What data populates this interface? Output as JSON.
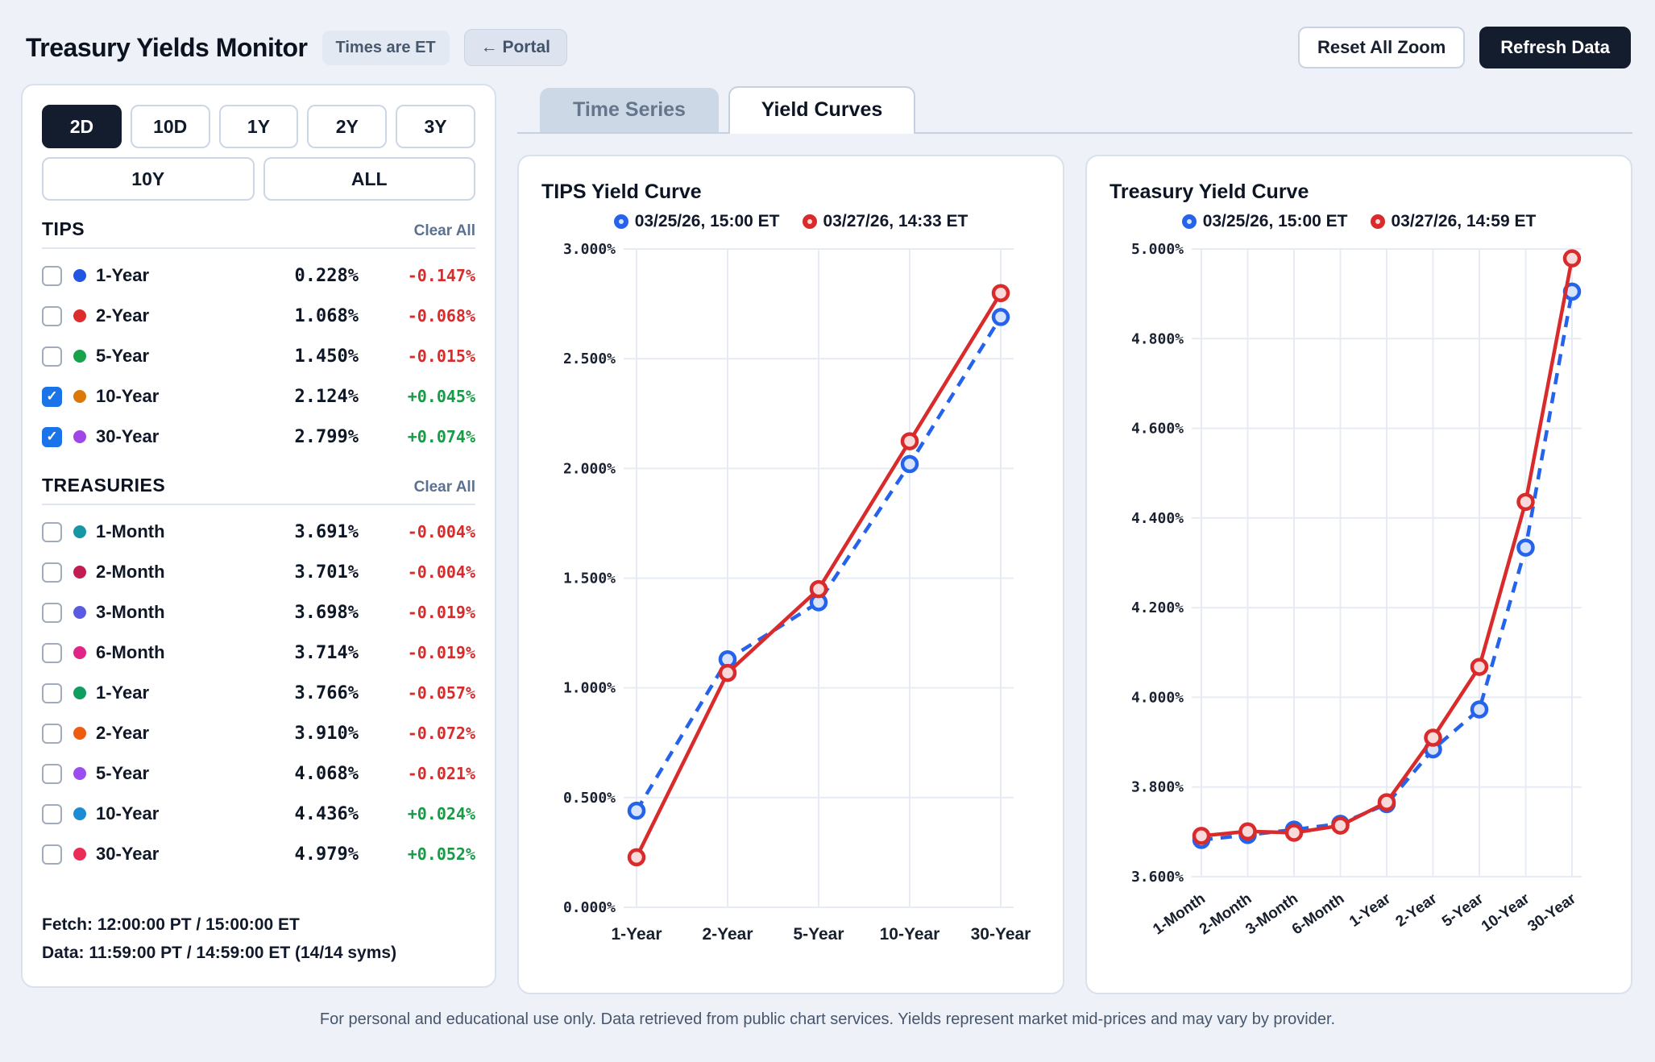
{
  "header": {
    "title": "Treasury Yields Monitor",
    "times_badge": "Times are ET",
    "portal_button": "← Portal",
    "reset_zoom_button": "Reset All Zoom",
    "refresh_button": "Refresh Data"
  },
  "sidebar": {
    "ranges": [
      {
        "label": "2D",
        "active": true
      },
      {
        "label": "10D",
        "active": false
      },
      {
        "label": "1Y",
        "active": false
      },
      {
        "label": "2Y",
        "active": false
      },
      {
        "label": "3Y",
        "active": false
      },
      {
        "label": "10Y",
        "active": false
      },
      {
        "label": "ALL",
        "active": false
      }
    ],
    "sections": [
      {
        "title": "TIPS",
        "clear_all": "Clear All",
        "rows": [
          {
            "label": "1-Year",
            "dot_color": "#2356e0",
            "value": "0.228%",
            "change": "-0.147%",
            "checked": false
          },
          {
            "label": "2-Year",
            "dot_color": "#dc2c2c",
            "value": "1.068%",
            "change": "-0.068%",
            "checked": false
          },
          {
            "label": "5-Year",
            "dot_color": "#17a34a",
            "value": "1.450%",
            "change": "-0.015%",
            "checked": false
          },
          {
            "label": "10-Year",
            "dot_color": "#d9790a",
            "value": "2.124%",
            "change": "+0.045%",
            "checked": true
          },
          {
            "label": "30-Year",
            "dot_color": "#a045e8",
            "value": "2.799%",
            "change": "+0.074%",
            "checked": true
          }
        ]
      },
      {
        "title": "TREASURIES",
        "clear_all": "Clear All",
        "rows": [
          {
            "label": "1-Month",
            "dot_color": "#1796a5",
            "value": "3.691%",
            "change": "-0.004%",
            "checked": false
          },
          {
            "label": "2-Month",
            "dot_color": "#c11d52",
            "value": "3.701%",
            "change": "-0.004%",
            "checked": false
          },
          {
            "label": "3-Month",
            "dot_color": "#5a5be0",
            "value": "3.698%",
            "change": "-0.019%",
            "checked": false
          },
          {
            "label": "6-Month",
            "dot_color": "#e02586",
            "value": "3.714%",
            "change": "-0.019%",
            "checked": false
          },
          {
            "label": "1-Year",
            "dot_color": "#0f9d61",
            "value": "3.766%",
            "change": "-0.057%",
            "checked": false
          },
          {
            "label": "2-Year",
            "dot_color": "#ed5c0f",
            "value": "3.910%",
            "change": "-0.072%",
            "checked": false
          },
          {
            "label": "5-Year",
            "dot_color": "#9b4df2",
            "value": "4.068%",
            "change": "-0.021%",
            "checked": false
          },
          {
            "label": "10-Year",
            "dot_color": "#1d8cd3",
            "value": "4.436%",
            "change": "+0.024%",
            "checked": false
          },
          {
            "label": "30-Year",
            "dot_color": "#eb2d55",
            "value": "4.979%",
            "change": "+0.052%",
            "checked": false
          }
        ]
      }
    ],
    "fetch_line": "Fetch: 12:00:00 PT / 15:00:00 ET",
    "data_line": "Data: 11:59:00 PT / 14:59:00 ET (14/14 syms)"
  },
  "tabs": [
    {
      "label": "Time Series",
      "active": false
    },
    {
      "label": "Yield Curves",
      "active": true
    }
  ],
  "chart_data": [
    {
      "type": "line",
      "title": "TIPS Yield Curve",
      "categories": [
        "1-Year",
        "2-Year",
        "5-Year",
        "10-Year",
        "30-Year"
      ],
      "series": [
        {
          "name": "03/25/26, 15:00 ET",
          "color": "#2563eb",
          "fill": "#d7e3fa",
          "style": "dashed",
          "values": [
            0.44,
            1.13,
            1.39,
            2.02,
            2.69
          ]
        },
        {
          "name": "03/27/26, 14:33 ET",
          "color": "#d92b2b",
          "fill": "#f8dada",
          "style": "solid",
          "values": [
            0.228,
            1.068,
            1.45,
            2.124,
            2.799
          ]
        }
      ],
      "ylim": [
        0.0,
        3.0
      ],
      "ytick_step": 0.5,
      "ytick_labels": [
        "3.000%",
        "2.500%",
        "2.000%",
        "1.500%",
        "1.000%",
        "0.500%",
        "0.000%"
      ],
      "grid": true,
      "legend_position": "top",
      "x_label_rotate": 0
    },
    {
      "type": "line",
      "title": "Treasury Yield Curve",
      "categories": [
        "1-Month",
        "2-Month",
        "3-Month",
        "6-Month",
        "1-Year",
        "2-Year",
        "5-Year",
        "10-Year",
        "30-Year"
      ],
      "series": [
        {
          "name": "03/25/26, 15:00 ET",
          "color": "#2563eb",
          "fill": "#d7e3fa",
          "style": "dashed",
          "values": [
            3.682,
            3.693,
            3.705,
            3.718,
            3.762,
            3.884,
            3.973,
            4.334,
            4.905
          ]
        },
        {
          "name": "03/27/26, 14:59 ET",
          "color": "#d92b2b",
          "fill": "#f8dada",
          "style": "solid",
          "values": [
            3.691,
            3.701,
            3.698,
            3.714,
            3.766,
            3.91,
            4.068,
            4.436,
            4.979
          ]
        }
      ],
      "ylim": [
        3.6,
        5.0
      ],
      "ytick_step": 0.2,
      "ytick_labels": [
        "5.000%",
        "4.800%",
        "4.600%",
        "4.400%",
        "4.200%",
        "4.000%",
        "3.800%",
        "3.600%"
      ],
      "grid": true,
      "legend_position": "top",
      "x_label_rotate": -35
    }
  ],
  "footer": {
    "disclaimer": "For personal and educational use only. Data retrieved from public chart services. Yields represent market mid-prices and may vary by provider."
  },
  "colors": {
    "accent_dark": "#141d2e",
    "checkbox_checked": "#1a73e8",
    "change_down": "#d92b2b",
    "change_up": "#169c46",
    "series_prev": "#2563eb",
    "series_curr": "#d92b2b",
    "page_bg": "#eef1f7",
    "grid": "#e7ecf4"
  }
}
